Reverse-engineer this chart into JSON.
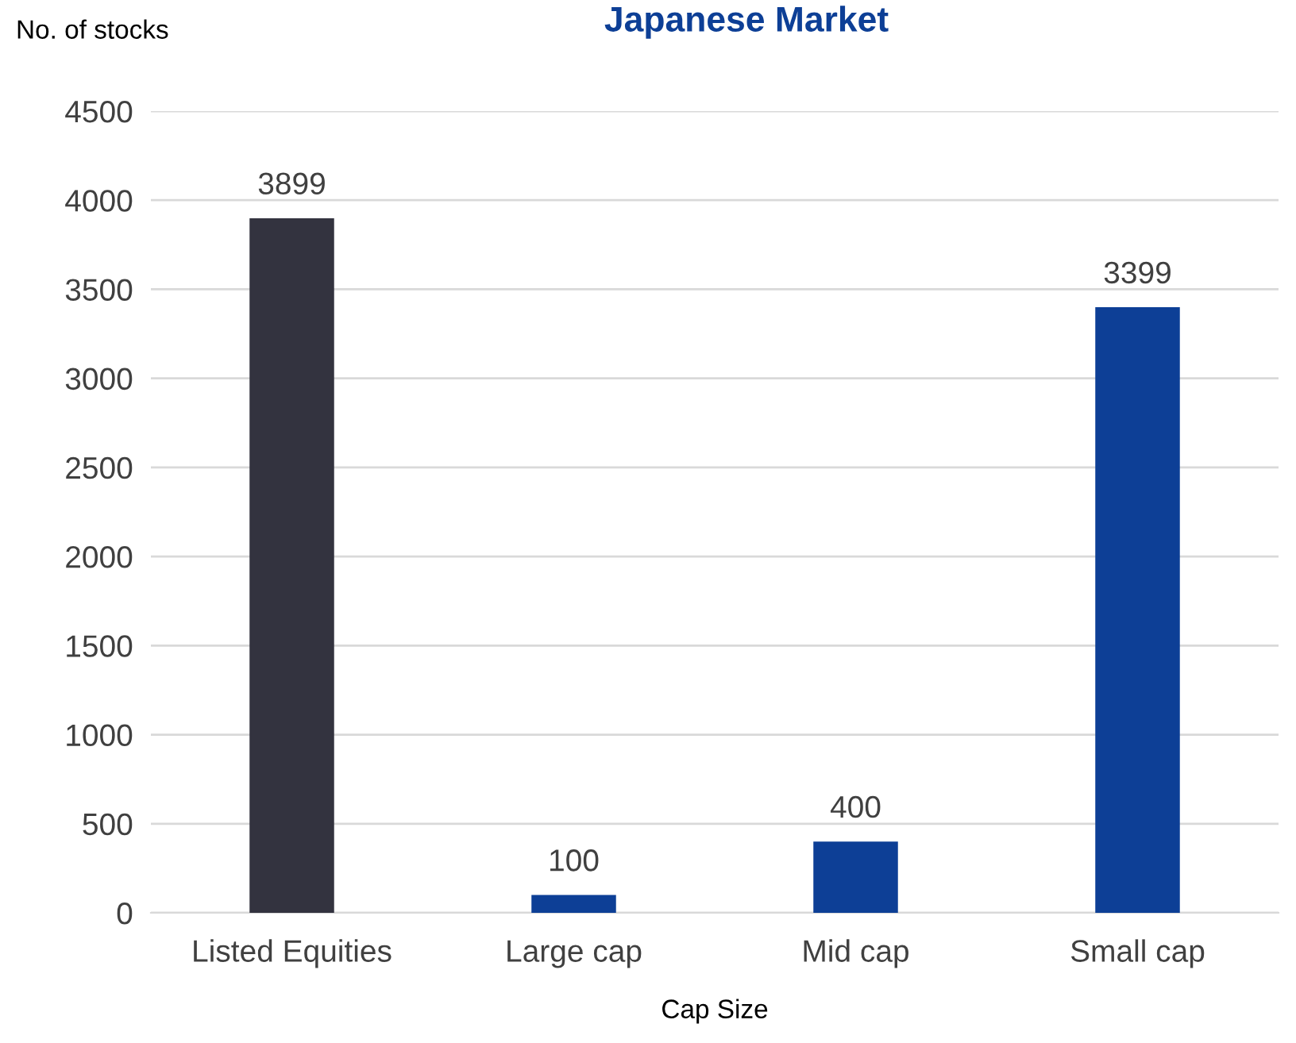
{
  "chart_data": {
    "type": "bar",
    "title": "Japanese Market",
    "ylabel": "No. of stocks",
    "xlabel": "Cap Size",
    "categories": [
      "Listed Equities",
      "Large cap",
      "Mid cap",
      "Small cap"
    ],
    "values": [
      3899,
      100,
      400,
      3399
    ],
    "colors": [
      "#33333f",
      "#0d3f96",
      "#0d3f96",
      "#0d3f96"
    ],
    "ylim": [
      0,
      4500
    ],
    "yticks": [
      0,
      500,
      1000,
      1500,
      2000,
      2500,
      3000,
      3500,
      4000,
      4500
    ],
    "grid": "y",
    "data_labels": true,
    "legend": false
  }
}
